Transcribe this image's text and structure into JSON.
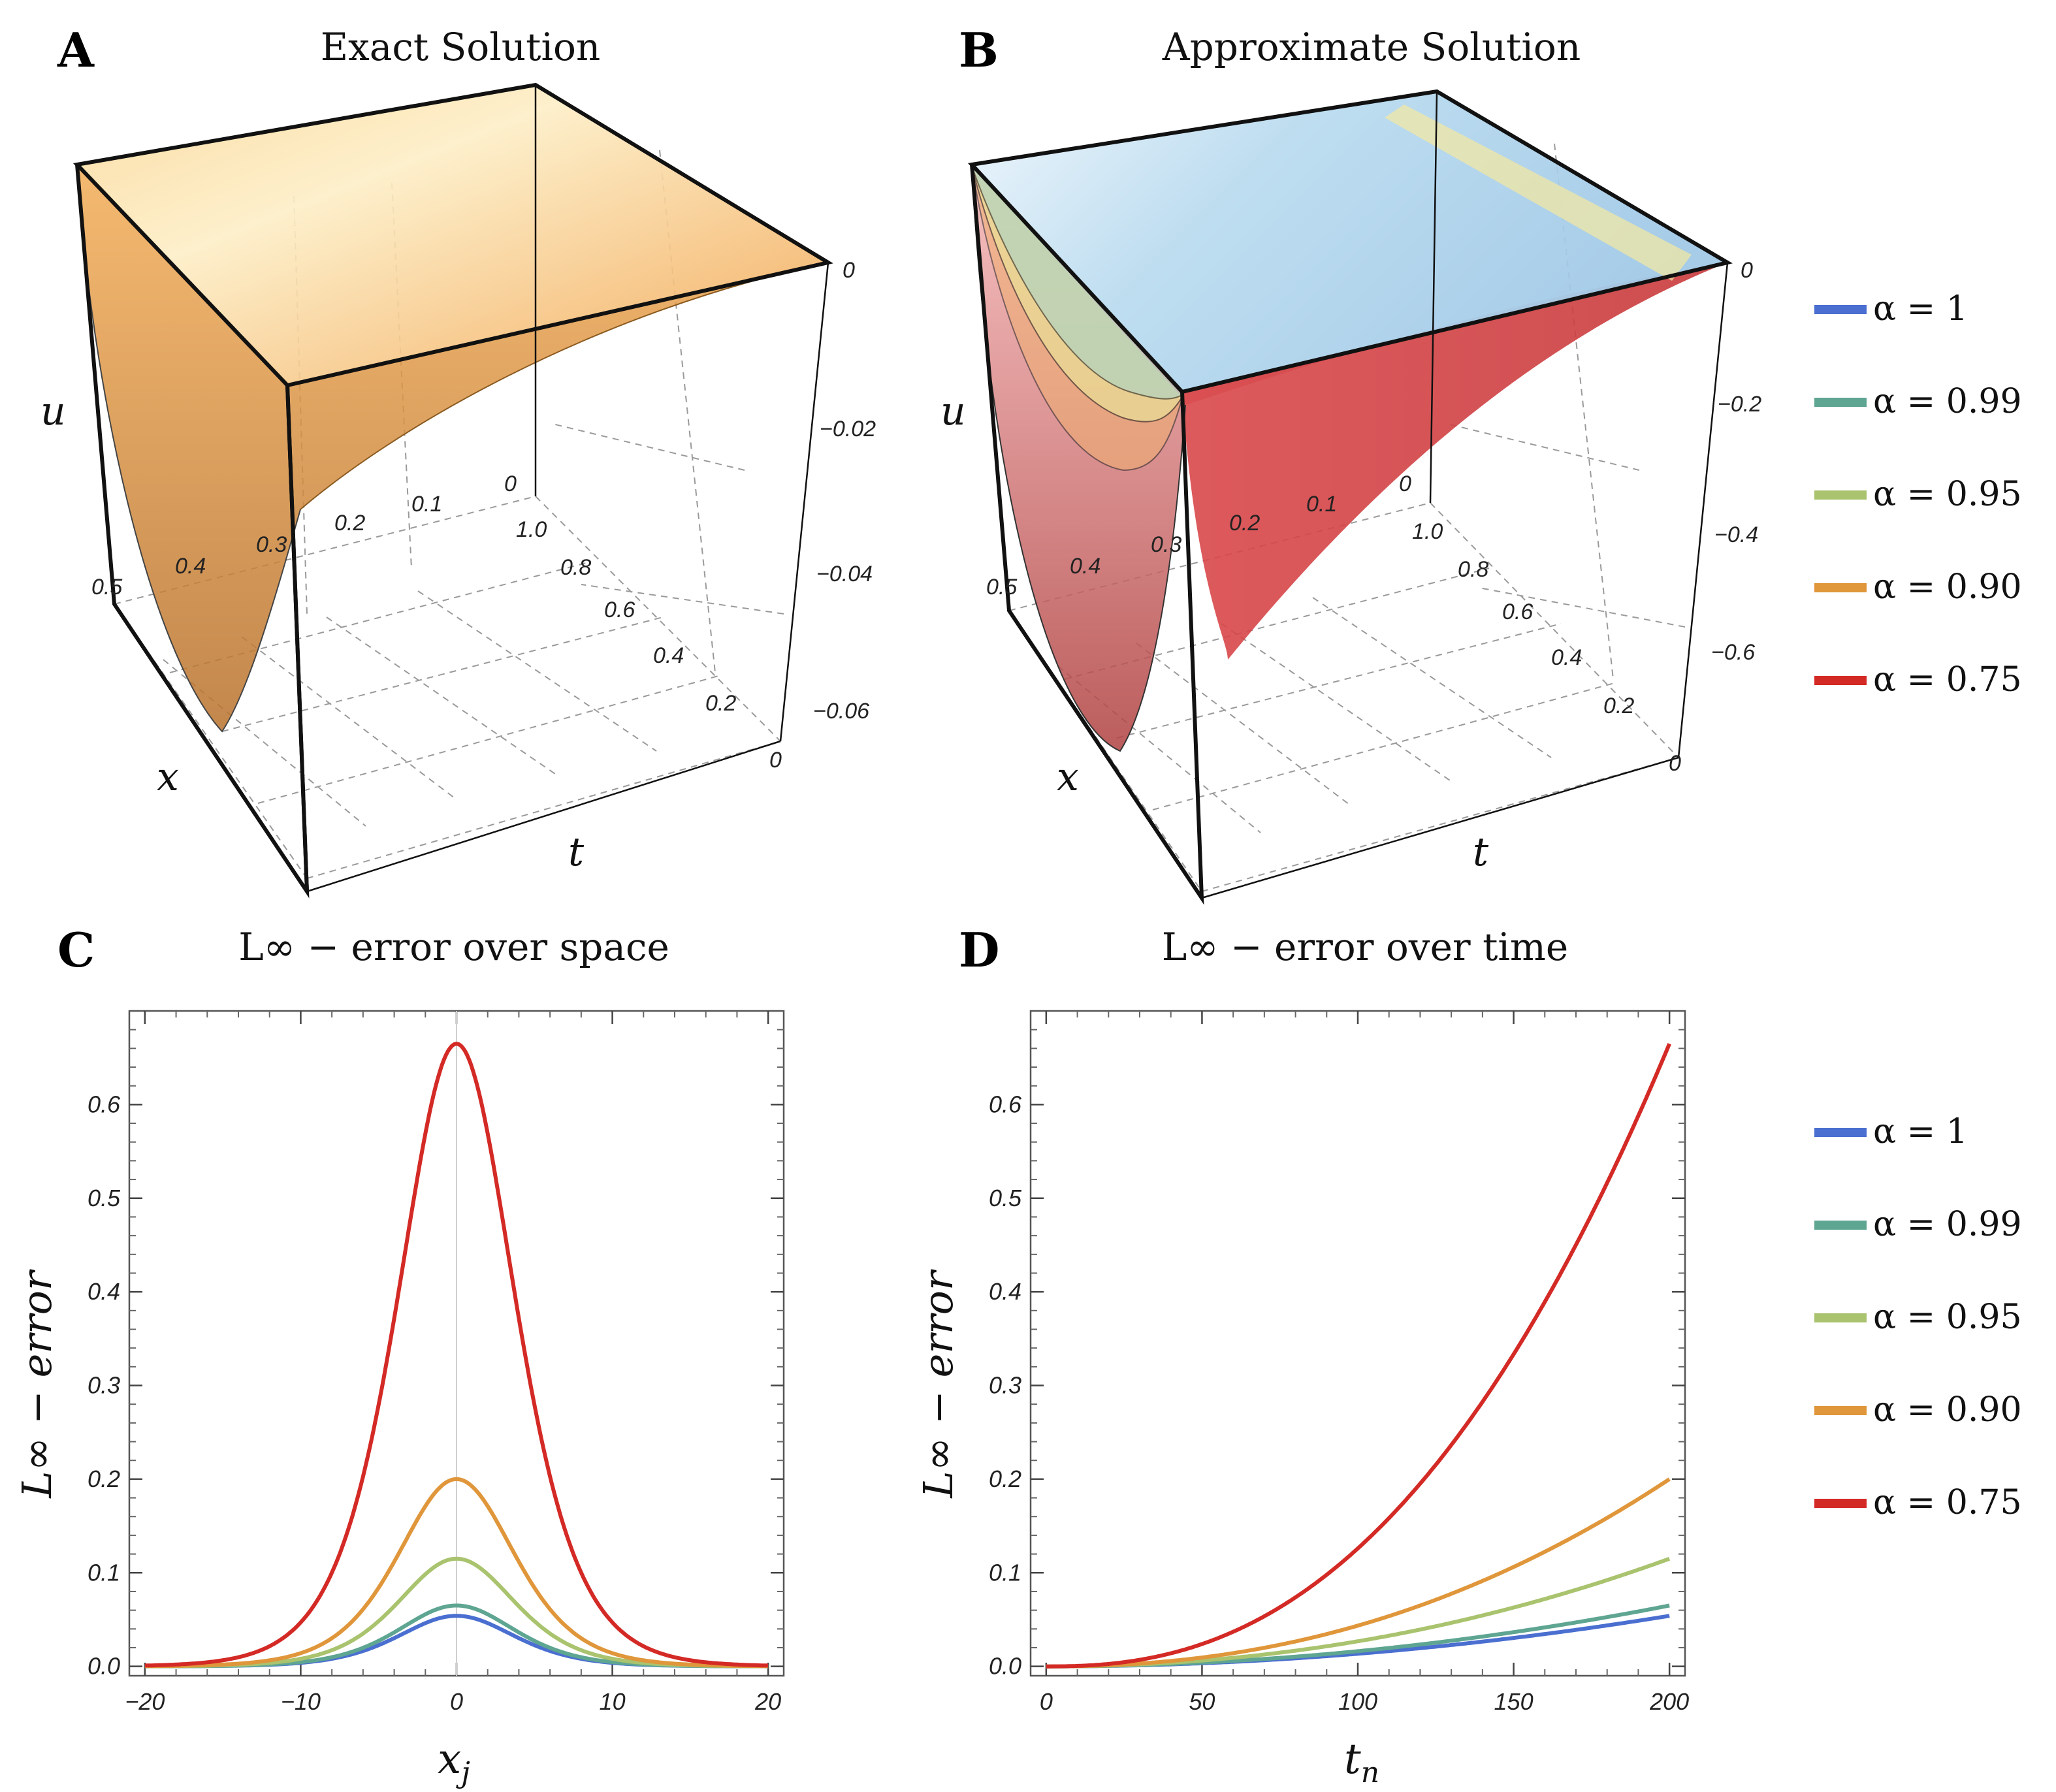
{
  "panels": {
    "A": {
      "letter": "A",
      "title": "Exact Solution"
    },
    "B": {
      "letter": "B",
      "title": "Approximate Solution"
    },
    "C": {
      "letter": "C",
      "title": "L∞ − error over space"
    },
    "D": {
      "letter": "D",
      "title": "L∞ − error over time"
    }
  },
  "colors": {
    "alpha_1": "#4a6fd0",
    "alpha_0.99": "#5ea592",
    "alpha_0.95": "#a9c36e",
    "alpha_0.90": "#e0963a",
    "alpha_0.75": "#d42a26",
    "exact_surface": "#f3a94e"
  },
  "legend_top": [
    "α = 1",
    "α = 0.99",
    "α = 0.95",
    "α = 0.90",
    "α = 0.75"
  ],
  "legend_bottom": [
    "α = 1",
    "α = 0.99",
    "α = 0.95",
    "α = 0.90",
    "α = 0.75"
  ],
  "chart_data": [
    {
      "id": "A",
      "type": "surface",
      "title": "Exact Solution",
      "axes": {
        "x_label": "x",
        "t_label": "t",
        "u_label": "u"
      },
      "x_ticks": [
        "0.5",
        "0.4",
        "0.3",
        "0.2",
        "0.1",
        "0"
      ],
      "t_ticks": [
        "0",
        "0.2",
        "0.4",
        "0.6",
        "0.8",
        "1.0"
      ],
      "u_ticks": [
        "0",
        "−0.02",
        "−0.04",
        "−0.06"
      ],
      "xlim": [
        0,
        0.5
      ],
      "tlim": [
        0,
        1.0
      ],
      "ulim": [
        -0.07,
        0
      ]
    },
    {
      "id": "B",
      "type": "surface",
      "title": "Approximate Solution",
      "axes": {
        "x_label": "x",
        "t_label": "t",
        "u_label": "u"
      },
      "x_ticks": [
        "0.5",
        "0.4",
        "0.3",
        "0.2",
        "0.1",
        "0"
      ],
      "t_ticks": [
        "0",
        "0.2",
        "0.4",
        "0.6",
        "0.8",
        "1.0"
      ],
      "u_ticks": [
        "0",
        "−0.2",
        "−0.4",
        "−0.6"
      ],
      "xlim": [
        0,
        0.5
      ],
      "tlim": [
        0,
        1.0
      ],
      "ulim": [
        -0.7,
        0
      ],
      "series": [
        {
          "name": "α = 1",
          "min_u": -0.055
        },
        {
          "name": "α = 0.99",
          "min_u": -0.065
        },
        {
          "name": "α = 0.95",
          "min_u": -0.115
        },
        {
          "name": "α = 0.90",
          "min_u": -0.2
        },
        {
          "name": "α = 0.75",
          "min_u": -0.665
        }
      ]
    },
    {
      "id": "C",
      "type": "line",
      "title": "L∞ − error over space",
      "xlabel": "x_j",
      "ylabel": "L∞ − error",
      "xlim": [
        -21,
        21
      ],
      "ylim": [
        -0.01,
        0.7
      ],
      "x_ticks": [
        "−20",
        "−10",
        "0",
        "10",
        "20"
      ],
      "y_ticks": [
        "0.0",
        "0.1",
        "0.2",
        "0.3",
        "0.4",
        "0.5",
        "0.6"
      ],
      "shape": "sech^2 peak at x = 0, width 5",
      "series": [
        {
          "name": "α = 1",
          "peak": 0.054
        },
        {
          "name": "α = 0.99",
          "peak": 0.065
        },
        {
          "name": "α = 0.95",
          "peak": 0.115
        },
        {
          "name": "α = 0.90",
          "peak": 0.2
        },
        {
          "name": "α = 0.75",
          "peak": 0.665
        }
      ]
    },
    {
      "id": "D",
      "type": "line",
      "title": "L∞ − error over time",
      "xlabel": "t_n",
      "ylabel": "L∞ − error",
      "xlim": [
        -5,
        205
      ],
      "ylim": [
        -0.01,
        0.7
      ],
      "x_ticks": [
        "0",
        "50",
        "100",
        "150",
        "200"
      ],
      "y_ticks": [
        "0.0",
        "0.1",
        "0.2",
        "0.3",
        "0.4",
        "0.5",
        "0.6"
      ],
      "series": [
        {
          "name": "α = 1",
          "end": 0.054,
          "power": 2.0
        },
        {
          "name": "α = 0.99",
          "end": 0.065,
          "power": 2.0
        },
        {
          "name": "α = 0.95",
          "end": 0.115,
          "power": 2.1
        },
        {
          "name": "α = 0.90",
          "end": 0.2,
          "power": 2.2
        },
        {
          "name": "α = 0.75",
          "end": 0.665,
          "power": 2.4
        }
      ]
    }
  ]
}
